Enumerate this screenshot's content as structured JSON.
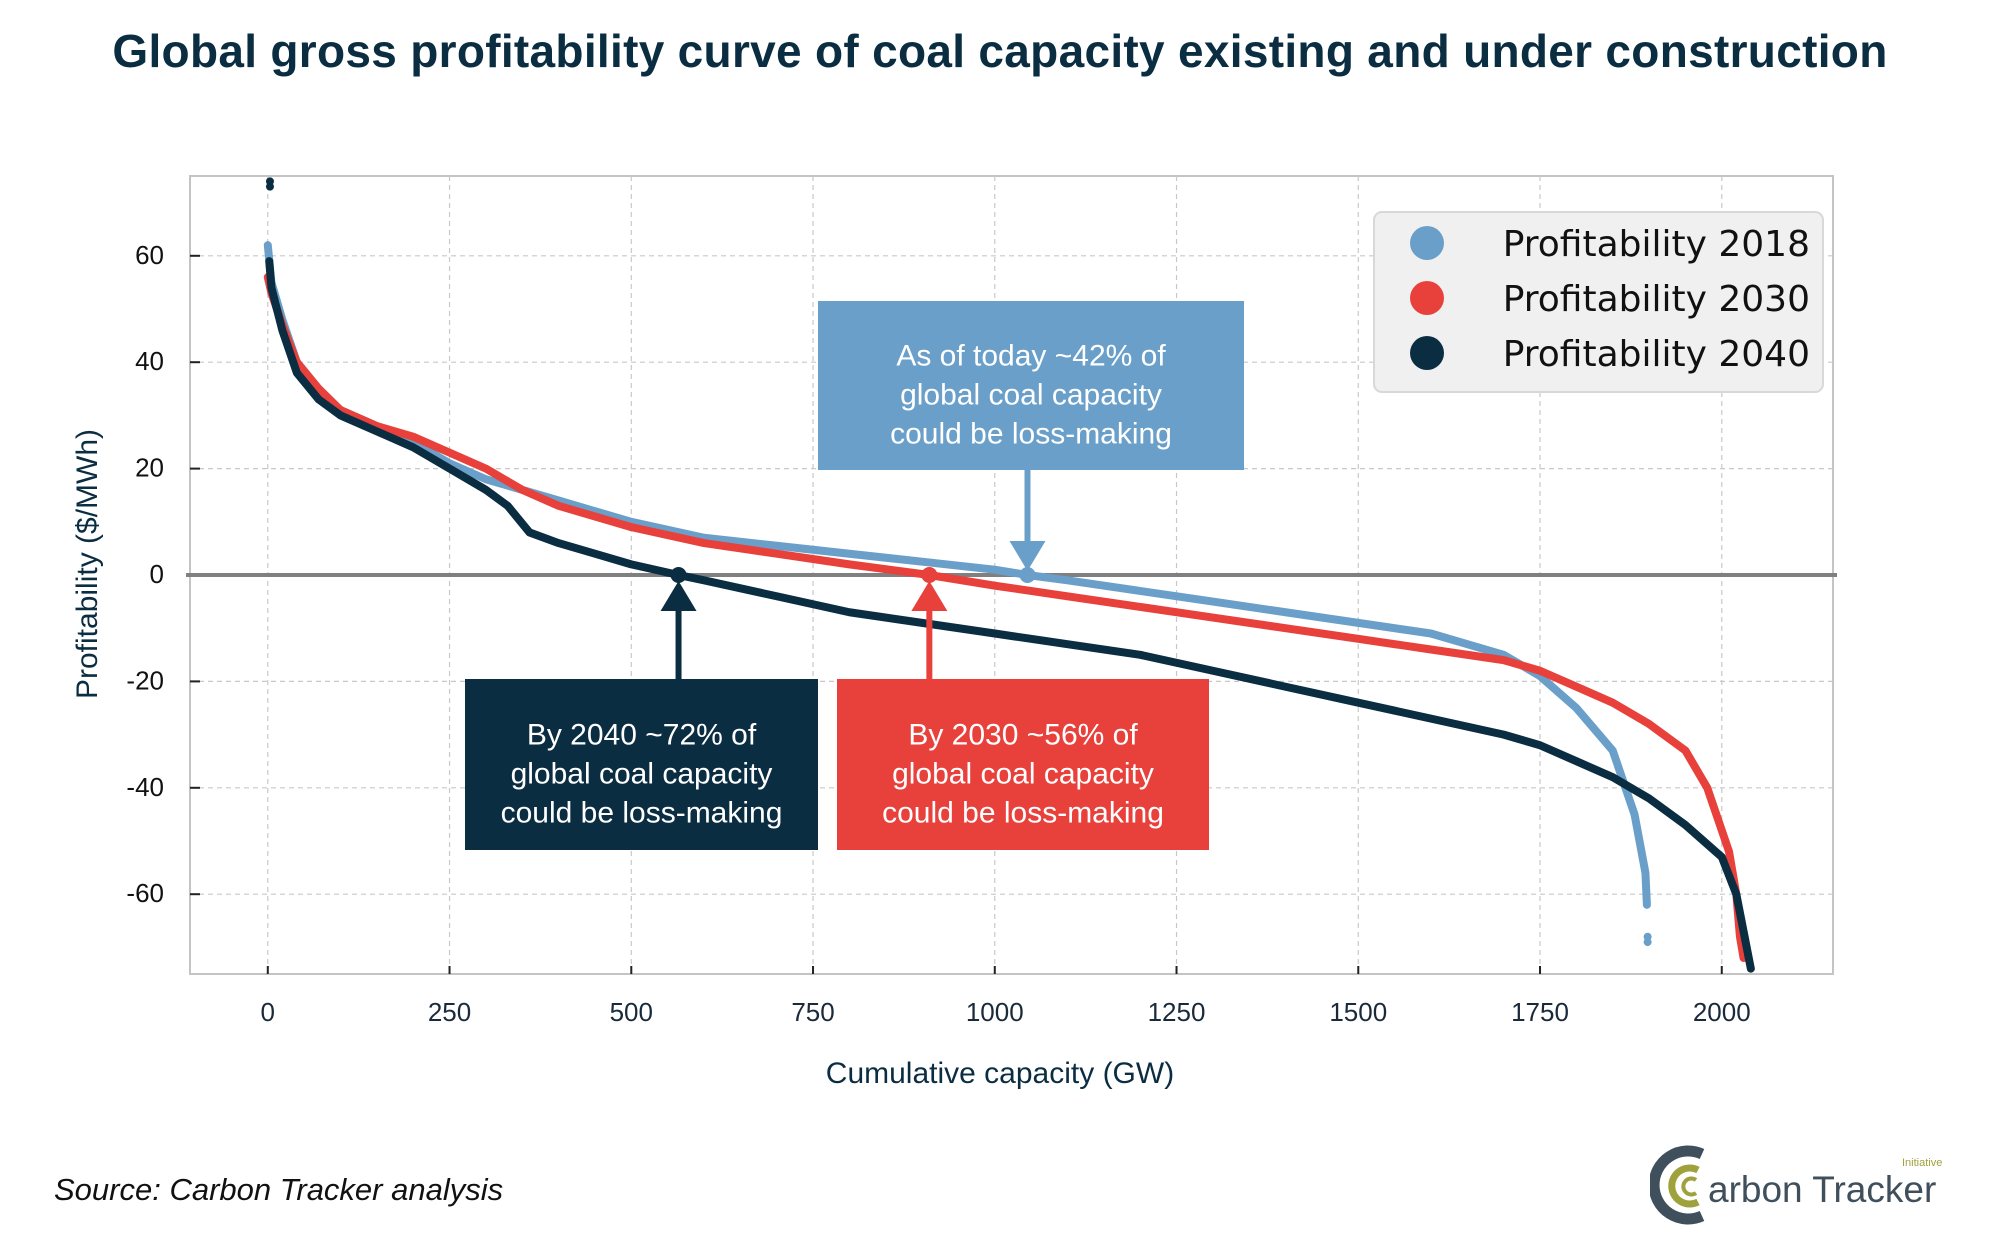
{
  "title": "Global gross profitability curve of coal capacity existing and under construction",
  "source": "Source: Carbon Tracker analysis",
  "logo": {
    "text": "Carbon Tracker",
    "superscript": "Initiative"
  },
  "colors": {
    "s2018": "#6a9fc9",
    "s2030": "#e8413c",
    "s2040": "#0b2d42",
    "zero_line": "#808080",
    "grid": "#c8c8c8"
  },
  "chart_data": {
    "type": "scatter",
    "title": "Global gross profitability curve of coal capacity existing and under construction",
    "xlabel": "Cumulative capacity (GW)",
    "ylabel": "Profitability ($/MWh)",
    "xlim": [
      -107,
      2153
    ],
    "ylim": [
      -75,
      75
    ],
    "xticks": [
      0,
      250,
      500,
      750,
      1000,
      1250,
      1500,
      1750,
      2000
    ],
    "yticks": [
      -60,
      -40,
      -20,
      0,
      20,
      40,
      60
    ],
    "grid": true,
    "legend_position": "top-right",
    "series": [
      {
        "name": "Profitability 2018",
        "color": "#6a9fc9",
        "x": [
          0,
          5,
          20,
          40,
          70,
          100,
          150,
          200,
          250,
          300,
          350,
          400,
          450,
          500,
          600,
          700,
          800,
          900,
          1000,
          1045,
          1100,
          1200,
          1300,
          1400,
          1500,
          1600,
          1700,
          1750,
          1800,
          1850,
          1880,
          1895,
          1897
        ],
        "y": [
          62,
          55,
          48,
          40,
          35,
          31,
          28,
          25,
          21,
          18,
          16,
          14,
          12,
          10,
          7,
          5.5,
          4,
          2.5,
          1,
          0,
          -1,
          -3,
          -5,
          -7,
          -9,
          -11,
          -15,
          -19,
          -25,
          -33,
          -45,
          -56,
          -62
        ],
        "outliers": [
          [
            1898,
            -68
          ],
          [
            1898,
            -69
          ]
        ]
      },
      {
        "name": "Profitability 2030",
        "color": "#e8413c",
        "x": [
          0,
          5,
          20,
          40,
          70,
          100,
          150,
          200,
          250,
          300,
          350,
          400,
          500,
          600,
          700,
          800,
          910,
          1000,
          1100,
          1200,
          1300,
          1400,
          1500,
          1600,
          1700,
          1750,
          1800,
          1850,
          1900,
          1950,
          1980,
          2010,
          2020,
          2025,
          2030
        ],
        "y": [
          56,
          53,
          47,
          40,
          35,
          31,
          28,
          26,
          23,
          20,
          16,
          13,
          9,
          6,
          4,
          2,
          0,
          -2,
          -4,
          -6,
          -8,
          -10,
          -12,
          -14,
          -16,
          -18,
          -21,
          -24,
          -28,
          -33,
          -40,
          -52,
          -60,
          -68,
          -72
        ],
        "outliers": []
      },
      {
        "name": "Profitability 2040",
        "color": "#0b2d42",
        "x": [
          2,
          5,
          20,
          40,
          70,
          100,
          150,
          200,
          250,
          300,
          330,
          360,
          400,
          450,
          500,
          565,
          600,
          700,
          800,
          900,
          1000,
          1100,
          1200,
          1300,
          1400,
          1500,
          1600,
          1700,
          1750,
          1800,
          1850,
          1900,
          1950,
          2000,
          2020,
          2030,
          2040
        ],
        "y": [
          59,
          54,
          46,
          38,
          33,
          30,
          27,
          24,
          20,
          16,
          13,
          8,
          6,
          4,
          2,
          0,
          -1,
          -4,
          -7,
          -9,
          -11,
          -13,
          -15,
          -18,
          -21,
          -24,
          -27,
          -30,
          -32,
          -35,
          -38,
          -42,
          -47,
          -53,
          -60,
          -67,
          -74
        ],
        "outliers": [
          [
            3,
            74
          ],
          [
            3,
            73
          ]
        ]
      }
    ],
    "annotations": [
      {
        "text_lines": [
          "As of today ~42% of",
          "global coal capacity",
          "could be loss-making"
        ],
        "series": "Profitability 2018",
        "point": [
          1045,
          0
        ],
        "color": "#6a9fc9"
      },
      {
        "text_lines": [
          "By 2040 ~72% of",
          "global coal capacity",
          "could be loss-making"
        ],
        "series": "Profitability 2040",
        "point": [
          565,
          0
        ],
        "color": "#0b2d42"
      },
      {
        "text_lines": [
          "By 2030 ~56% of",
          "global coal capacity",
          "could be loss-making"
        ],
        "series": "Profitability 2030",
        "point": [
          910,
          0
        ],
        "color": "#e8413c"
      }
    ]
  }
}
